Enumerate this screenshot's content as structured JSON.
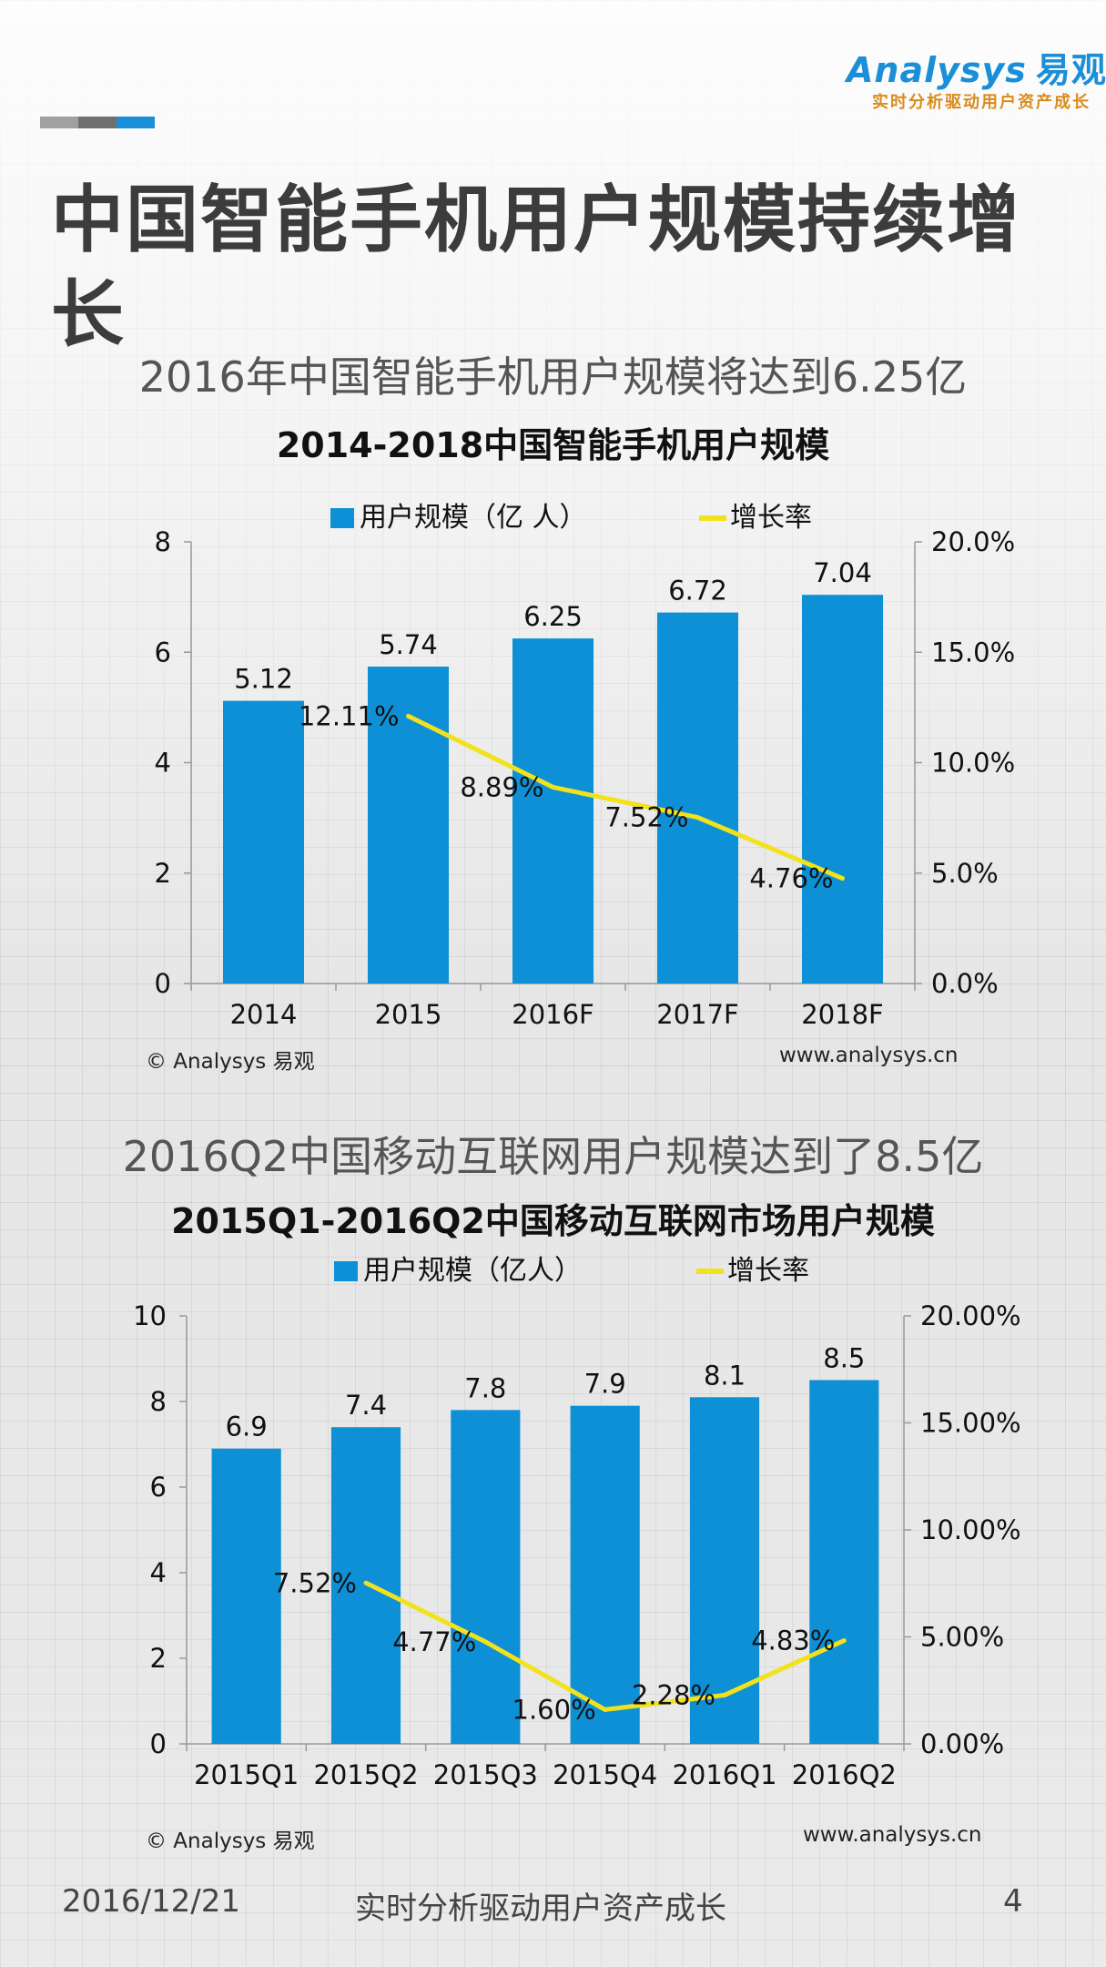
{
  "header": {
    "logo_text": "nalysys",
    "logo_initial": "A",
    "logo_cn": "易观",
    "logo_tagline": "实时分析驱动用户资产成长",
    "deco_colors": [
      "#a0a0a0",
      "#707070",
      "#1a8fd8"
    ]
  },
  "page_title": "中国智能手机用户规模持续增长",
  "section1": {
    "subtitle": "2016年中国智能手机用户规模将达到6.25亿",
    "source_left": "© Analysys 易观",
    "source_right": "www.analysys.cn"
  },
  "section2": {
    "subtitle": "2016Q2中国移动互联网用户规模达到了8.5亿",
    "source_left": "© Analysys 易观",
    "source_right": "www.analysys.cn"
  },
  "footer": {
    "date": "2016/12/21",
    "slogan": "实时分析驱动用户资产成长",
    "page": "4"
  },
  "colors": {
    "bar": "#0e90d6",
    "line": "#f2e21c"
  },
  "chart_data": [
    {
      "type": "bar",
      "title": "2014-2018中国智能手机用户规模",
      "categories": [
        "2014",
        "2015",
        "2016F",
        "2017F",
        "2018F"
      ],
      "series": [
        {
          "name": "用户规模（亿 人）",
          "type": "bar",
          "axis": "left",
          "values": [
            5.12,
            5.74,
            6.25,
            6.72,
            7.04
          ],
          "labels": [
            "5.12",
            "5.74",
            "6.25",
            "6.72",
            "7.04"
          ]
        },
        {
          "name": "增长率",
          "type": "line",
          "axis": "right",
          "values": [
            null,
            12.11,
            8.89,
            7.52,
            4.76
          ],
          "labels": [
            "",
            "12.11%",
            "8.89%",
            "7.52%",
            "4.76%"
          ]
        }
      ],
      "ylim_left": [
        0,
        8
      ],
      "yticks_left": [
        "0",
        "2",
        "4",
        "6",
        "8"
      ],
      "ylim_right": [
        0,
        20
      ],
      "yticks_right": [
        "0.0%",
        "5.0%",
        "10.0%",
        "15.0%",
        "20.0%"
      ],
      "legend": "top"
    },
    {
      "type": "bar",
      "title": "2015Q1-2016Q2中国移动互联网市场用户规模",
      "categories": [
        "2015Q1",
        "2015Q2",
        "2015Q3",
        "2015Q4",
        "2016Q1",
        "2016Q2"
      ],
      "series": [
        {
          "name": "用户规模（亿人）",
          "type": "bar",
          "axis": "left",
          "values": [
            6.9,
            7.4,
            7.8,
            7.9,
            8.1,
            8.5
          ],
          "labels": [
            "6.9",
            "7.4",
            "7.8",
            "7.9",
            "8.1",
            "8.5"
          ]
        },
        {
          "name": "增长率",
          "type": "line",
          "axis": "right",
          "values": [
            null,
            7.52,
            4.77,
            1.6,
            2.28,
            4.83
          ],
          "labels": [
            "",
            "7.52%",
            "4.77%",
            "1.60%",
            "2.28%",
            "4.83%"
          ]
        }
      ],
      "ylim_left": [
        0,
        10
      ],
      "yticks_left": [
        "0",
        "2",
        "4",
        "6",
        "8",
        "10"
      ],
      "ylim_right": [
        0,
        20
      ],
      "yticks_right": [
        "0.00%",
        "5.00%",
        "10.00%",
        "15.00%",
        "20.00%"
      ],
      "legend": "top"
    }
  ]
}
